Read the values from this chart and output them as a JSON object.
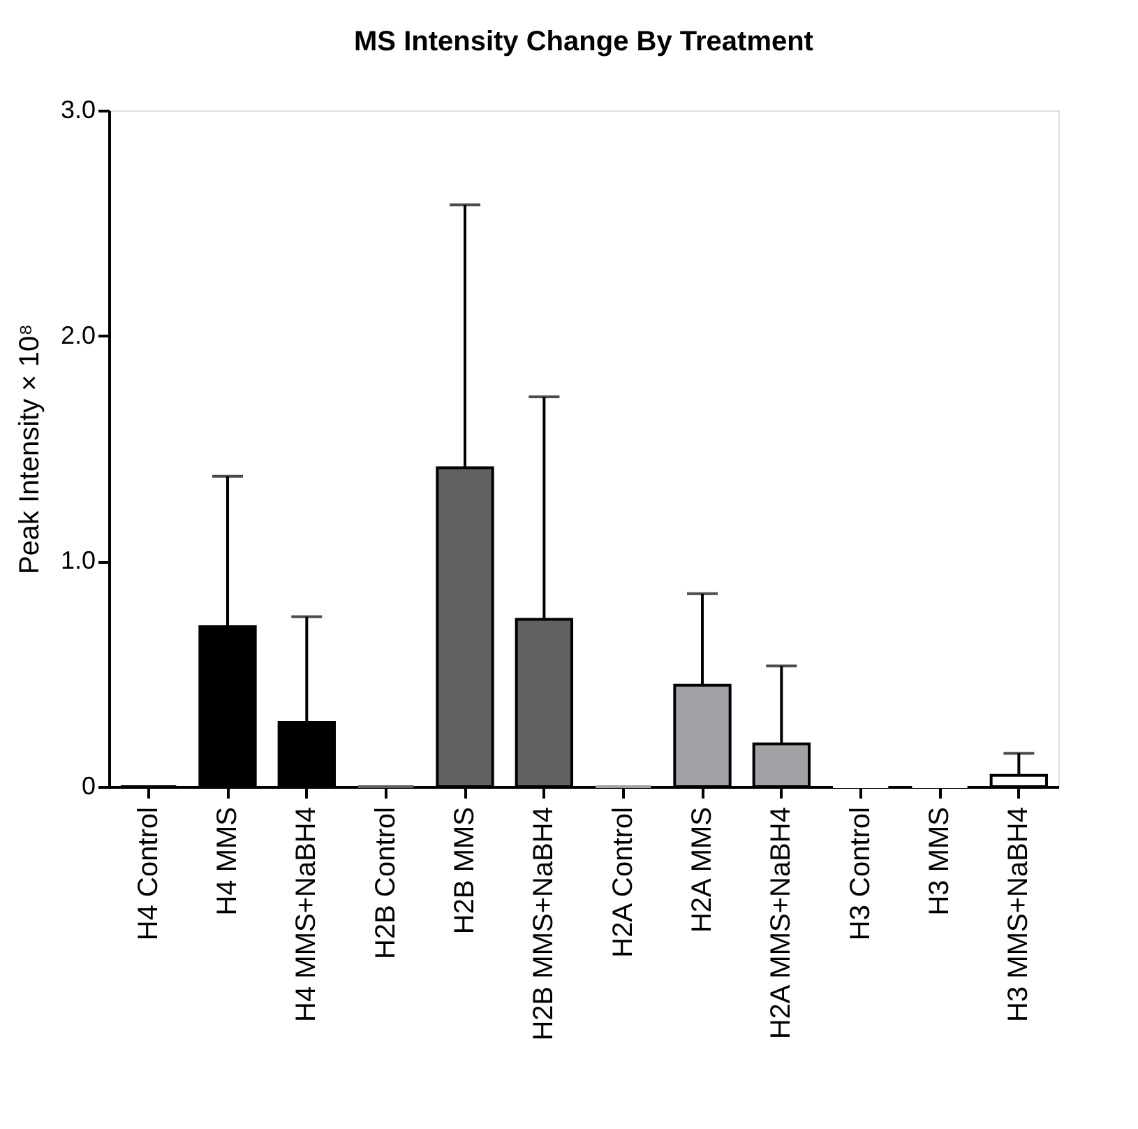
{
  "chart_data": {
    "type": "bar",
    "title": "MS Intensity Change By Treatment",
    "ylabel": "Peak Intensity × 10⁸",
    "categories": [
      "H4 Control",
      "H4 MMS",
      "H4 MMS+NaBH4",
      "H2B Control",
      "H2B MMS",
      "H2B MMS+NaBH4",
      "H2A Control",
      "H2A MMS",
      "H2A MMS+NaBH4",
      "H3 Control",
      "H3 MMS",
      "H3 MMS+NaBH4"
    ],
    "values": [
      0,
      0.71,
      0.285,
      0,
      1.415,
      0.742,
      0,
      0.45,
      0.19,
      0,
      0,
      0.05
    ],
    "colors": [
      "#000000",
      "#000000",
      "#000000",
      "#616161",
      "#616161",
      "#616161",
      "#a2a1a6",
      "#a2a1a6",
      "#a2a1a6",
      "#ffffff",
      "#ffffff",
      "#ffffff"
    ],
    "errors": [
      null,
      [
        0.71,
        1.377
      ],
      [
        0.285,
        0.754
      ],
      null,
      [
        1.415,
        2.581
      ],
      [
        0.742,
        1.729
      ],
      null,
      [
        0.45,
        0.856
      ],
      [
        0.19,
        0.535
      ],
      null,
      null,
      [
        0.05,
        0.148
      ]
    ],
    "ylim": [
      0,
      3
    ],
    "yticks": [
      0,
      {
        "value": 1,
        "label": "1.0"
      },
      {
        "value": 2,
        "label": "2.0"
      },
      {
        "value": 3,
        "label": "3.0"
      }
    ],
    "grid": false
  }
}
